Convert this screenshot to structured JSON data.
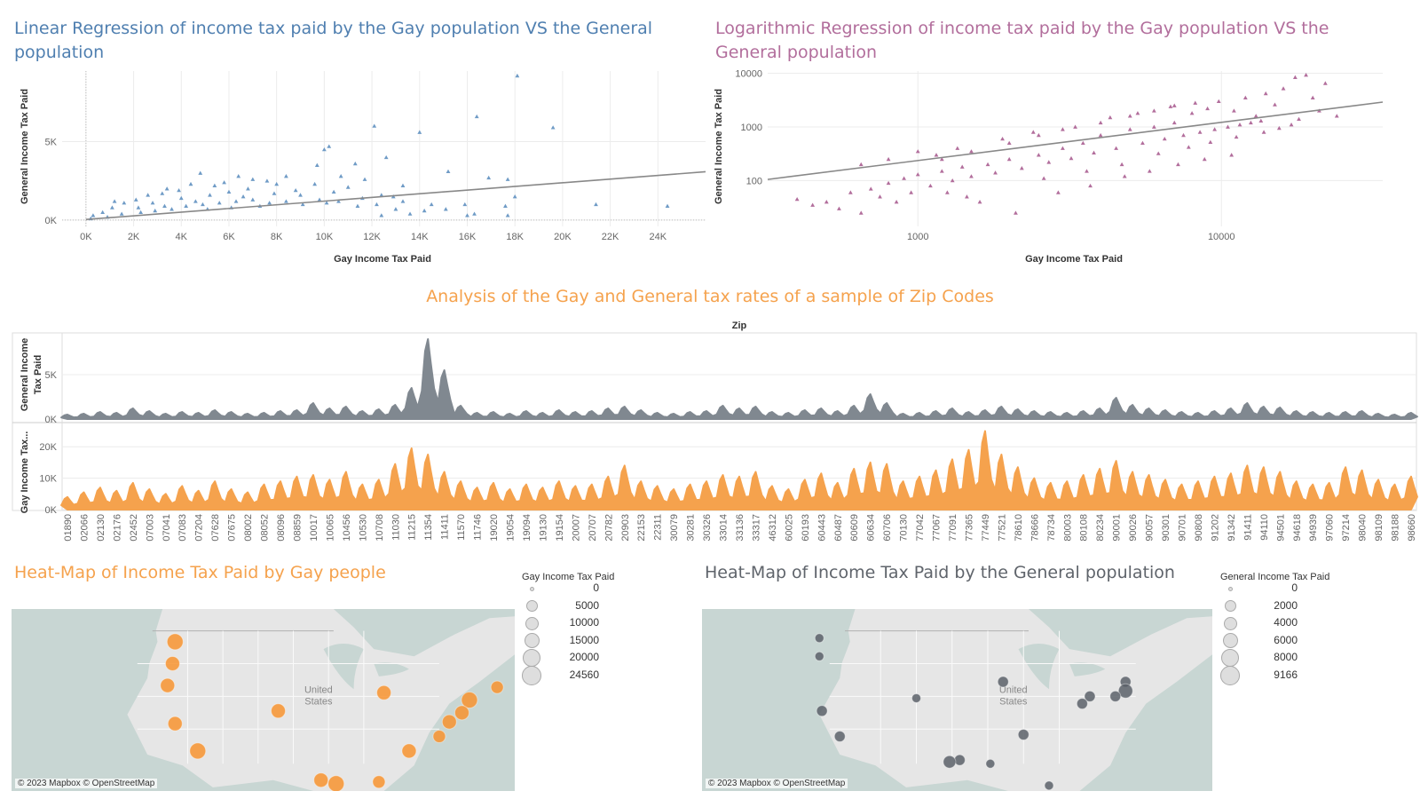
{
  "panels": {
    "linear": {
      "title": "Linear Regression of income tax paid by the Gay population VS the General population",
      "color": "#6f9bc6"
    },
    "log": {
      "title": "Logarithmic Regression of income tax paid by the Gay population VS the General population",
      "color": "#b26e9c"
    },
    "zip": {
      "title": "Analysis of the Gay and General tax rates of a sample of Zip Codes",
      "header": "Zip",
      "general_color": "#808890",
      "gay_color": "#f5a24d"
    },
    "heat_gay": {
      "title": "Heat-Map of Income Tax Paid by Gay people",
      "credit": "© 2023 Mapbox © OpenStreetMap",
      "marker_color": "#f7932f",
      "map_label": [
        "United",
        "States"
      ],
      "legend_title": "Gay Income Tax Paid",
      "legend_values": [
        "0",
        "5000",
        "10000",
        "15000",
        "20000",
        "24560"
      ]
    },
    "heat_general": {
      "title": "Heat-Map of Income Tax Paid by the General population",
      "credit": "© 2023 Mapbox © OpenStreetMap",
      "marker_color": "#5b6068",
      "map_label": [
        "United",
        "States"
      ],
      "legend_title": "General Income Tax Paid",
      "legend_values": [
        "0",
        "2000",
        "4000",
        "6000",
        "8000",
        "9166"
      ]
    }
  },
  "chart_data": [
    {
      "type": "scatter",
      "title": "Linear Regression of income tax paid by the Gay population VS the General population",
      "xlabel": "Gay Income Tax Paid",
      "ylabel": "General Income Tax Paid",
      "xlim": [
        -1000,
        26000
      ],
      "ylim": [
        -400,
        9500
      ],
      "x_ticks": [
        0,
        2000,
        4000,
        6000,
        8000,
        10000,
        12000,
        14000,
        16000,
        18000,
        20000,
        22000,
        24000
      ],
      "x_tick_labels": [
        "0K",
        "2K",
        "4K",
        "6K",
        "8K",
        "10K",
        "12K",
        "14K",
        "16K",
        "18K",
        "20K",
        "22K",
        "24K"
      ],
      "y_ticks": [
        0,
        5000
      ],
      "y_tick_labels": [
        "0K",
        "5K"
      ],
      "trend_line": {
        "slope": 0.117,
        "intercept": 40
      },
      "points": [
        [
          18100,
          9200
        ],
        [
          16400,
          6600
        ],
        [
          19600,
          5900
        ],
        [
          12100,
          6000
        ],
        [
          14000,
          5600
        ],
        [
          10000,
          4500
        ],
        [
          10200,
          4700
        ],
        [
          9700,
          3500
        ],
        [
          11300,
          3600
        ],
        [
          12600,
          4000
        ],
        [
          15200,
          3100
        ],
        [
          16900,
          2700
        ],
        [
          17700,
          2600
        ],
        [
          18000,
          1500
        ],
        [
          21400,
          1000
        ],
        [
          24400,
          900
        ],
        [
          17600,
          900
        ],
        [
          15900,
          1000
        ],
        [
          16000,
          300
        ],
        [
          16300,
          400
        ],
        [
          17700,
          300
        ],
        [
          14500,
          1000
        ],
        [
          13300,
          1200
        ],
        [
          13300,
          2200
        ],
        [
          12900,
          1500
        ],
        [
          12400,
          1600
        ],
        [
          11700,
          2600
        ],
        [
          11000,
          2100
        ],
        [
          10700,
          2800
        ],
        [
          10400,
          1800
        ],
        [
          9600,
          2300
        ],
        [
          8400,
          2800
        ],
        [
          8000,
          2300
        ],
        [
          7600,
          2500
        ],
        [
          7000,
          2600
        ],
        [
          6400,
          2800
        ],
        [
          6000,
          1800
        ],
        [
          5400,
          2200
        ],
        [
          4800,
          3000
        ],
        [
          4400,
          2300
        ],
        [
          3900,
          1900
        ],
        [
          3200,
          1700
        ],
        [
          2600,
          1600
        ],
        [
          2100,
          1300
        ],
        [
          1600,
          1100
        ],
        [
          1100,
          800
        ],
        [
          700,
          500
        ],
        [
          300,
          300
        ],
        [
          200,
          100
        ],
        [
          900,
          200
        ],
        [
          1500,
          400
        ],
        [
          2300,
          500
        ],
        [
          2900,
          600
        ],
        [
          3600,
          700
        ],
        [
          4200,
          900
        ],
        [
          4900,
          1000
        ],
        [
          5600,
          1100
        ],
        [
          6300,
          1200
        ],
        [
          7000,
          1300
        ],
        [
          7700,
          1100
        ],
        [
          8400,
          1200
        ],
        [
          9100,
          1000
        ],
        [
          9800,
          1300
        ],
        [
          10600,
          1200
        ],
        [
          11400,
          900
        ],
        [
          12200,
          1000
        ],
        [
          13000,
          700
        ],
        [
          14200,
          600
        ],
        [
          15100,
          700
        ],
        [
          1200,
          1200
        ],
        [
          2800,
          1100
        ],
        [
          4000,
          1400
        ],
        [
          5200,
          1600
        ],
        [
          6600,
          1500
        ],
        [
          7900,
          1700
        ],
        [
          9000,
          1600
        ],
        [
          10100,
          1100
        ],
        [
          11600,
          1400
        ],
        [
          3400,
          2000
        ],
        [
          5800,
          2400
        ],
        [
          6800,
          2000
        ],
        [
          8800,
          1900
        ],
        [
          12400,
          300
        ],
        [
          13600,
          400
        ],
        [
          2200,
          800
        ],
        [
          3300,
          900
        ],
        [
          4600,
          1200
        ],
        [
          5100,
          700
        ],
        [
          6100,
          800
        ],
        [
          7300,
          900
        ]
      ]
    },
    {
      "type": "scatter",
      "title": "Logarithmic Regression of income tax paid by the Gay population VS the General population",
      "xlabel": "Gay Income Tax Paid",
      "ylabel": "General Income Tax Paid",
      "x_scale": "log",
      "y_scale": "log",
      "xlim": [
        320,
        34000
      ],
      "ylim": [
        14,
        11000
      ],
      "x_ticks": [
        1000,
        10000
      ],
      "x_tick_labels": [
        "1000",
        "10000"
      ],
      "y_ticks": [
        100,
        1000,
        10000
      ],
      "y_tick_labels": [
        "100",
        "1000",
        "10000"
      ],
      "trend_line": {
        "x": [
          320,
          34000
        ],
        "y": [
          105,
          2900
        ]
      },
      "points": [
        [
          19000,
          9300
        ],
        [
          17500,
          8400
        ],
        [
          22000,
          6500
        ],
        [
          16000,
          5200
        ],
        [
          14000,
          4200
        ],
        [
          20000,
          3500
        ],
        [
          24000,
          1600
        ],
        [
          18000,
          1400
        ],
        [
          21000,
          2000
        ],
        [
          12000,
          3500
        ],
        [
          15000,
          2600
        ],
        [
          11000,
          2000
        ],
        [
          13000,
          1600
        ],
        [
          9000,
          2200
        ],
        [
          8000,
          1800
        ],
        [
          7000,
          1200
        ],
        [
          6000,
          1000
        ],
        [
          5000,
          900
        ],
        [
          4000,
          700
        ],
        [
          3500,
          500
        ],
        [
          3000,
          400
        ],
        [
          2500,
          300
        ],
        [
          2000,
          250
        ],
        [
          1700,
          200
        ],
        [
          1400,
          180
        ],
        [
          1200,
          150
        ],
        [
          1000,
          130
        ],
        [
          900,
          110
        ],
        [
          800,
          90
        ],
        [
          700,
          70
        ],
        [
          600,
          60
        ],
        [
          500,
          40
        ],
        [
          450,
          35
        ],
        [
          400,
          45
        ],
        [
          550,
          30
        ],
        [
          650,
          25
        ],
        [
          750,
          50
        ],
        [
          850,
          40
        ],
        [
          950,
          60
        ],
        [
          1100,
          80
        ],
        [
          1300,
          100
        ],
        [
          1500,
          120
        ],
        [
          1800,
          140
        ],
        [
          2200,
          170
        ],
        [
          2700,
          220
        ],
        [
          3200,
          260
        ],
        [
          3800,
          330
        ],
        [
          4500,
          400
        ],
        [
          5500,
          500
        ],
        [
          6500,
          600
        ],
        [
          7500,
          700
        ],
        [
          8500,
          800
        ],
        [
          9500,
          900
        ],
        [
          10500,
          1000
        ],
        [
          11500,
          1100
        ],
        [
          12500,
          1200
        ],
        [
          13500,
          1300
        ],
        [
          2100,
          25
        ],
        [
          1600,
          40
        ],
        [
          2900,
          60
        ],
        [
          3700,
          80
        ],
        [
          4800,
          120
        ],
        [
          5800,
          150
        ],
        [
          7200,
          200
        ],
        [
          8800,
          250
        ],
        [
          10800,
          300
        ],
        [
          1150,
          300
        ],
        [
          1350,
          400
        ],
        [
          1900,
          600
        ],
        [
          2400,
          800
        ],
        [
          3300,
          1000
        ],
        [
          4300,
          1500
        ],
        [
          5300,
          1800
        ],
        [
          6800,
          2400
        ],
        [
          8200,
          2800
        ],
        [
          9800,
          3000
        ],
        [
          650,
          200
        ],
        [
          800,
          250
        ],
        [
          1000,
          350
        ],
        [
          1250,
          60
        ],
        [
          1450,
          50
        ],
        [
          2600,
          110
        ],
        [
          3600,
          150
        ],
        [
          4700,
          200
        ],
        [
          6200,
          320
        ],
        [
          7800,
          420
        ],
        [
          9200,
          520
        ],
        [
          11200,
          650
        ],
        [
          13800,
          800
        ],
        [
          15500,
          950
        ],
        [
          17000,
          1100
        ],
        [
          6000,
          2000
        ],
        [
          7000,
          2500
        ],
        [
          5000,
          1600
        ],
        [
          4000,
          1200
        ],
        [
          3000,
          900
        ],
        [
          2500,
          700
        ],
        [
          2000,
          500
        ],
        [
          1500,
          350
        ],
        [
          1200,
          250
        ]
      ]
    },
    {
      "type": "area",
      "title": "Analysis of the Gay and General tax rates of a sample of Zip Codes",
      "header": "Zip",
      "categories": [
        "01890",
        "02066",
        "02130",
        "02176",
        "02452",
        "07003",
        "07041",
        "07083",
        "07204",
        "07628",
        "07675",
        "08002",
        "08052",
        "08096",
        "08859",
        "10017",
        "10065",
        "10456",
        "10530",
        "10708",
        "11030",
        "11215",
        "11354",
        "11411",
        "11570",
        "11746",
        "19020",
        "19054",
        "19094",
        "19130",
        "19154",
        "20007",
        "20707",
        "20782",
        "20903",
        "22153",
        "22311",
        "30079",
        "30281",
        "30326",
        "33014",
        "33136",
        "33317",
        "46312",
        "60025",
        "60193",
        "60443",
        "60487",
        "60609",
        "60634",
        "60706",
        "70130",
        "77042",
        "77067",
        "77091",
        "77365",
        "77449",
        "77521",
        "78610",
        "78666",
        "78734",
        "80003",
        "80108",
        "80234",
        "90001",
        "90026",
        "90057",
        "90301",
        "90701",
        "90808",
        "91202",
        "91342",
        "91411",
        "94110",
        "94501",
        "94618",
        "94939",
        "97060",
        "97214",
        "98040",
        "98109",
        "98188",
        "98660"
      ],
      "series": [
        {
          "name": "General Income Tax Paid",
          "ylim": [
            0,
            9500
          ],
          "y_ticks": [
            0,
            5000
          ],
          "y_tick_labels": [
            "0K",
            "5K"
          ],
          "values": [
            500,
            600,
            800,
            700,
            1200,
            900,
            600,
            800,
            700,
            1000,
            800,
            600,
            700,
            900,
            1000,
            1800,
            1200,
            1400,
            900,
            1100,
            1600,
            3500,
            9000,
            5500,
            1500,
            700,
            800,
            600,
            900,
            700,
            1000,
            800,
            900,
            1200,
            1400,
            1000,
            700,
            600,
            800,
            900,
            1500,
            1200,
            1400,
            800,
            700,
            1000,
            1200,
            900,
            1500,
            2800,
            1800,
            600,
            700,
            900,
            1200,
            800,
            1000,
            1400,
            1100,
            900,
            800,
            700,
            900,
            1200,
            2400,
            1600,
            1200,
            1000,
            800,
            700,
            900,
            1200,
            1800,
            1400,
            1300,
            900,
            800,
            700,
            800,
            900,
            600,
            500,
            700
          ]
        },
        {
          "name": "Gay Income Tax Paid",
          "ylim": [
            0,
            26000
          ],
          "y_ticks": [
            0,
            10000,
            20000
          ],
          "y_tick_labels": [
            "0K",
            "10K",
            "20K"
          ],
          "values": [
            4000,
            5500,
            7000,
            6000,
            8500,
            6500,
            5000,
            7500,
            6000,
            9000,
            6500,
            5500,
            8000,
            9000,
            10500,
            11000,
            9500,
            12000,
            8000,
            9500,
            14500,
            19500,
            17500,
            12000,
            9000,
            7000,
            8500,
            6500,
            8000,
            7000,
            9000,
            7500,
            8000,
            10500,
            14000,
            9000,
            7500,
            6500,
            8000,
            9000,
            11000,
            10500,
            12000,
            7500,
            6500,
            9500,
            11500,
            8500,
            13000,
            15000,
            14500,
            9000,
            10500,
            12500,
            16000,
            19000,
            25000,
            17500,
            13500,
            10000,
            8500,
            9000,
            11000,
            13000,
            15500,
            12000,
            11000,
            9500,
            8000,
            9000,
            10500,
            11500,
            14000,
            13500,
            12000,
            9000,
            8000,
            8500,
            13500,
            12500,
            9500,
            8000,
            10500
          ]
        }
      ]
    },
    {
      "type": "map",
      "title": "Heat-Map of Income Tax Paid by Gay people",
      "size_legend": {
        "title": "Gay Income Tax Paid",
        "values": [
          0,
          5000,
          10000,
          15000,
          20000,
          24560
        ]
      }
    },
    {
      "type": "map",
      "title": "Heat-Map of Income Tax Paid by the General population",
      "size_legend": {
        "title": "General Income Tax Paid",
        "values": [
          0,
          2000,
          4000,
          6000,
          8000,
          9166
        ]
      }
    }
  ]
}
